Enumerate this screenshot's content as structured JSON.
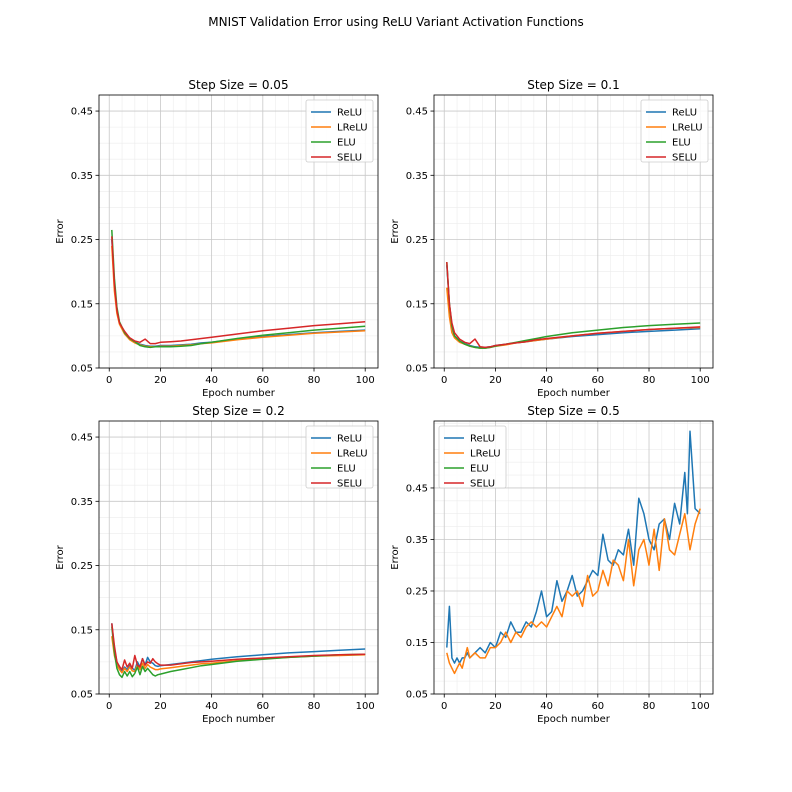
{
  "figure": {
    "title": "MNIST Validation Error using ReLU Variant Activation Functions"
  },
  "colors": {
    "ReLU": "#1f77b4",
    "LReLU": "#ff7f0e",
    "ELU": "#2ca02c",
    "SELU": "#d62728",
    "grid_major": "#c8c8c8",
    "grid_minor": "#ececec"
  },
  "chart_data": [
    {
      "type": "line",
      "title": "Step Size = 0.05",
      "xlabel": "Epoch number",
      "ylabel": "Error",
      "xlim": [
        -4,
        105
      ],
      "ylim": [
        0.05,
        0.475
      ],
      "xticks": [
        0,
        20,
        40,
        60,
        80,
        100
      ],
      "yticks": [
        0.05,
        0.15,
        0.25,
        0.35,
        0.45
      ],
      "ytick_labels": [
        "0.05",
        "0.15",
        "0.25",
        "0.35",
        "0.45"
      ],
      "grid": true,
      "legend": "top-right",
      "series": [
        {
          "name": "ReLU",
          "x": [
            1,
            2,
            3,
            4,
            6,
            8,
            10,
            12,
            14,
            16,
            18,
            20,
            24,
            28,
            32,
            36,
            40,
            50,
            60,
            70,
            80,
            90,
            100
          ],
          "values": [
            0.25,
            0.18,
            0.14,
            0.12,
            0.105,
            0.095,
            0.09,
            0.087,
            0.085,
            0.084,
            0.084,
            0.085,
            0.085,
            0.086,
            0.087,
            0.089,
            0.09,
            0.095,
            0.099,
            0.102,
            0.105,
            0.107,
            0.109
          ]
        },
        {
          "name": "LReLU",
          "x": [
            1,
            2,
            3,
            4,
            6,
            8,
            10,
            12,
            14,
            16,
            18,
            20,
            24,
            28,
            32,
            36,
            40,
            50,
            60,
            70,
            80,
            90,
            100
          ],
          "values": [
            0.24,
            0.17,
            0.135,
            0.118,
            0.103,
            0.094,
            0.089,
            0.086,
            0.084,
            0.083,
            0.083,
            0.084,
            0.084,
            0.085,
            0.086,
            0.088,
            0.089,
            0.094,
            0.098,
            0.101,
            0.104,
            0.106,
            0.108
          ]
        },
        {
          "name": "ELU",
          "x": [
            1,
            2,
            3,
            4,
            6,
            8,
            10,
            12,
            14,
            16,
            18,
            20,
            24,
            28,
            32,
            36,
            40,
            50,
            60,
            70,
            80,
            90,
            100
          ],
          "values": [
            0.265,
            0.19,
            0.145,
            0.122,
            0.105,
            0.096,
            0.091,
            0.085,
            0.083,
            0.082,
            0.083,
            0.083,
            0.083,
            0.084,
            0.085,
            0.088,
            0.09,
            0.096,
            0.101,
            0.105,
            0.109,
            0.112,
            0.115
          ]
        },
        {
          "name": "SELU",
          "x": [
            1,
            2,
            3,
            4,
            6,
            8,
            10,
            12,
            14,
            16,
            18,
            20,
            24,
            28,
            32,
            36,
            40,
            50,
            60,
            70,
            80,
            90,
            100
          ],
          "values": [
            0.255,
            0.18,
            0.14,
            0.12,
            0.107,
            0.097,
            0.092,
            0.09,
            0.095,
            0.088,
            0.088,
            0.09,
            0.091,
            0.092,
            0.094,
            0.096,
            0.098,
            0.103,
            0.108,
            0.112,
            0.116,
            0.119,
            0.122
          ]
        }
      ]
    },
    {
      "type": "line",
      "title": "Step Size = 0.1",
      "xlabel": "Epoch number",
      "ylabel": "Error",
      "xlim": [
        -4,
        105
      ],
      "ylim": [
        0.05,
        0.475
      ],
      "xticks": [
        0,
        20,
        40,
        60,
        80,
        100
      ],
      "yticks": [
        0.05,
        0.15,
        0.25,
        0.35,
        0.45
      ],
      "ytick_labels": [
        "0.05",
        "0.15",
        "0.25",
        "0.35",
        "0.45"
      ],
      "grid": true,
      "legend": "top-right",
      "series": [
        {
          "name": "ReLU",
          "x": [
            1,
            2,
            3,
            4,
            6,
            8,
            10,
            12,
            14,
            16,
            18,
            20,
            24,
            28,
            32,
            36,
            40,
            50,
            60,
            70,
            80,
            90,
            100
          ],
          "values": [
            0.21,
            0.15,
            0.115,
            0.1,
            0.092,
            0.088,
            0.085,
            0.083,
            0.082,
            0.082,
            0.083,
            0.085,
            0.087,
            0.089,
            0.091,
            0.093,
            0.095,
            0.099,
            0.102,
            0.105,
            0.107,
            0.109,
            0.111
          ]
        },
        {
          "name": "LReLU",
          "x": [
            1,
            2,
            3,
            4,
            6,
            8,
            10,
            12,
            14,
            16,
            18,
            20,
            24,
            28,
            32,
            36,
            40,
            50,
            60,
            70,
            80,
            90,
            100
          ],
          "values": [
            0.175,
            0.13,
            0.105,
            0.097,
            0.09,
            0.087,
            0.084,
            0.082,
            0.081,
            0.081,
            0.082,
            0.084,
            0.086,
            0.089,
            0.091,
            0.093,
            0.095,
            0.1,
            0.104,
            0.107,
            0.11,
            0.112,
            0.113
          ]
        },
        {
          "name": "ELU",
          "x": [
            1,
            2,
            3,
            4,
            6,
            8,
            10,
            12,
            14,
            16,
            18,
            20,
            24,
            28,
            32,
            36,
            40,
            50,
            60,
            70,
            80,
            90,
            100
          ],
          "values": [
            0.215,
            0.15,
            0.115,
            0.1,
            0.092,
            0.087,
            0.084,
            0.082,
            0.081,
            0.081,
            0.082,
            0.084,
            0.087,
            0.09,
            0.093,
            0.096,
            0.099,
            0.105,
            0.109,
            0.113,
            0.116,
            0.118,
            0.12
          ]
        },
        {
          "name": "SELU",
          "x": [
            1,
            2,
            3,
            4,
            6,
            8,
            10,
            12,
            14,
            16,
            18,
            20,
            24,
            28,
            32,
            36,
            40,
            50,
            60,
            70,
            80,
            90,
            100
          ],
          "values": [
            0.215,
            0.15,
            0.12,
            0.105,
            0.095,
            0.09,
            0.088,
            0.095,
            0.083,
            0.082,
            0.083,
            0.085,
            0.087,
            0.089,
            0.091,
            0.094,
            0.096,
            0.1,
            0.104,
            0.107,
            0.11,
            0.112,
            0.114
          ]
        }
      ]
    },
    {
      "type": "line",
      "title": "Step Size = 0.2",
      "xlabel": "Epoch number",
      "ylabel": "Error",
      "xlim": [
        -4,
        105
      ],
      "ylim": [
        0.05,
        0.475
      ],
      "xticks": [
        0,
        20,
        40,
        60,
        80,
        100
      ],
      "yticks": [
        0.05,
        0.15,
        0.25,
        0.35,
        0.45
      ],
      "ytick_labels": [
        "0.05",
        "0.15",
        "0.25",
        "0.35",
        "0.45"
      ],
      "grid": true,
      "legend": "top-right",
      "series": [
        {
          "name": "ReLU",
          "x": [
            1,
            2,
            3,
            4,
            5,
            6,
            7,
            8,
            9,
            10,
            11,
            12,
            13,
            14,
            15,
            16,
            17,
            18,
            19,
            20,
            24,
            28,
            32,
            36,
            40,
            50,
            60,
            70,
            80,
            90,
            100
          ],
          "values": [
            0.16,
            0.12,
            0.1,
            0.09,
            0.085,
            0.092,
            0.088,
            0.094,
            0.09,
            0.087,
            0.1,
            0.092,
            0.105,
            0.095,
            0.107,
            0.1,
            0.098,
            0.094,
            0.093,
            0.094,
            0.096,
            0.098,
            0.1,
            0.102,
            0.104,
            0.108,
            0.111,
            0.114,
            0.116,
            0.118,
            0.12
          ]
        },
        {
          "name": "LReLU",
          "x": [
            1,
            2,
            3,
            4,
            5,
            6,
            7,
            8,
            9,
            10,
            11,
            12,
            13,
            14,
            15,
            16,
            17,
            18,
            19,
            20,
            24,
            28,
            32,
            36,
            40,
            50,
            60,
            70,
            80,
            90,
            100
          ],
          "values": [
            0.14,
            0.11,
            0.095,
            0.088,
            0.083,
            0.09,
            0.085,
            0.092,
            0.086,
            0.085,
            0.095,
            0.088,
            0.098,
            0.09,
            0.096,
            0.092,
            0.09,
            0.088,
            0.088,
            0.089,
            0.091,
            0.093,
            0.095,
            0.097,
            0.098,
            0.102,
            0.105,
            0.107,
            0.109,
            0.11,
            0.111
          ]
        },
        {
          "name": "ELU",
          "x": [
            1,
            2,
            3,
            4,
            5,
            6,
            7,
            8,
            9,
            10,
            11,
            12,
            13,
            14,
            15,
            16,
            17,
            18,
            19,
            20,
            24,
            28,
            32,
            36,
            40,
            50,
            60,
            70,
            80,
            90,
            100
          ],
          "values": [
            0.155,
            0.115,
            0.09,
            0.08,
            0.076,
            0.085,
            0.078,
            0.085,
            0.077,
            0.082,
            0.092,
            0.08,
            0.093,
            0.085,
            0.09,
            0.085,
            0.08,
            0.078,
            0.08,
            0.081,
            0.085,
            0.088,
            0.091,
            0.094,
            0.096,
            0.101,
            0.104,
            0.107,
            0.109,
            0.111,
            0.112
          ]
        },
        {
          "name": "SELU",
          "x": [
            1,
            2,
            3,
            4,
            5,
            6,
            7,
            8,
            9,
            10,
            11,
            12,
            13,
            14,
            15,
            16,
            17,
            18,
            19,
            20,
            24,
            28,
            32,
            36,
            40,
            50,
            60,
            70,
            80,
            90,
            100
          ],
          "values": [
            0.16,
            0.125,
            0.1,
            0.093,
            0.088,
            0.103,
            0.092,
            0.098,
            0.09,
            0.11,
            0.095,
            0.092,
            0.105,
            0.095,
            0.1,
            0.098,
            0.105,
            0.1,
            0.097,
            0.095,
            0.095,
            0.097,
            0.099,
            0.1,
            0.101,
            0.104,
            0.106,
            0.108,
            0.11,
            0.111,
            0.112
          ]
        }
      ]
    },
    {
      "type": "line",
      "title": "Step Size = 0.5",
      "xlabel": "Epoch number",
      "ylabel": "Error",
      "xlim": [
        -4,
        105
      ],
      "ylim": [
        0.05,
        0.58
      ],
      "xticks": [
        0,
        20,
        40,
        60,
        80,
        100
      ],
      "yticks": [
        0.05,
        0.15,
        0.25,
        0.35,
        0.45
      ],
      "ytick_labels": [
        "0.05",
        "0.15",
        "0.25",
        "0.35",
        "0.45"
      ],
      "grid": true,
      "legend": "top-left",
      "series": [
        {
          "name": "ReLU",
          "x": [
            1,
            2,
            3,
            4,
            5,
            6,
            7,
            8,
            9,
            10,
            12,
            14,
            16,
            18,
            20,
            22,
            24,
            26,
            28,
            30,
            32,
            34,
            36,
            38,
            40,
            42,
            44,
            46,
            48,
            50,
            52,
            54,
            56,
            58,
            60,
            62,
            64,
            66,
            68,
            70,
            72,
            74,
            76,
            78,
            80,
            82,
            84,
            86,
            88,
            90,
            92,
            94,
            95,
            96,
            98,
            100
          ],
          "values": [
            0.14,
            0.22,
            0.12,
            0.11,
            0.12,
            0.11,
            0.12,
            0.12,
            0.13,
            0.12,
            0.13,
            0.14,
            0.13,
            0.15,
            0.14,
            0.17,
            0.16,
            0.19,
            0.17,
            0.17,
            0.19,
            0.18,
            0.21,
            0.25,
            0.2,
            0.21,
            0.27,
            0.23,
            0.25,
            0.28,
            0.24,
            0.25,
            0.27,
            0.29,
            0.28,
            0.36,
            0.31,
            0.3,
            0.33,
            0.32,
            0.37,
            0.3,
            0.43,
            0.4,
            0.35,
            0.33,
            0.38,
            0.39,
            0.35,
            0.42,
            0.38,
            0.48,
            0.4,
            0.56,
            0.41,
            0.4
          ]
        },
        {
          "name": "LReLU",
          "x": [
            1,
            2,
            3,
            4,
            5,
            6,
            7,
            8,
            9,
            10,
            12,
            14,
            16,
            18,
            20,
            22,
            24,
            26,
            28,
            30,
            32,
            34,
            36,
            38,
            40,
            42,
            44,
            46,
            48,
            50,
            52,
            54,
            56,
            58,
            60,
            62,
            64,
            66,
            68,
            70,
            72,
            74,
            76,
            78,
            80,
            82,
            84,
            86,
            88,
            90,
            92,
            94,
            96,
            98,
            100
          ],
          "values": [
            0.13,
            0.11,
            0.1,
            0.09,
            0.1,
            0.11,
            0.1,
            0.12,
            0.14,
            0.12,
            0.13,
            0.12,
            0.12,
            0.14,
            0.14,
            0.15,
            0.17,
            0.15,
            0.17,
            0.16,
            0.18,
            0.19,
            0.18,
            0.19,
            0.18,
            0.2,
            0.22,
            0.2,
            0.25,
            0.24,
            0.25,
            0.22,
            0.28,
            0.24,
            0.25,
            0.29,
            0.26,
            0.31,
            0.3,
            0.27,
            0.35,
            0.26,
            0.33,
            0.35,
            0.3,
            0.37,
            0.29,
            0.39,
            0.33,
            0.32,
            0.36,
            0.4,
            0.33,
            0.38,
            0.41
          ]
        },
        {
          "name": "ELU",
          "x": [],
          "values": []
        },
        {
          "name": "SELU",
          "x": [],
          "values": []
        }
      ]
    }
  ]
}
